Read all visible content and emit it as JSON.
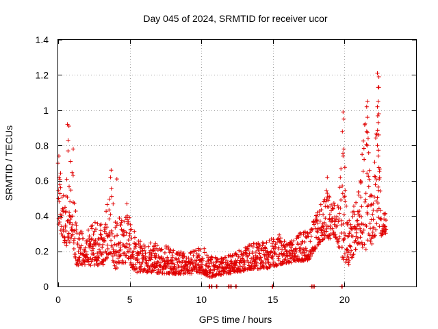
{
  "chart_data": {
    "type": "scatter",
    "title": "Day 045 of 2024, SRMTID for receiver ucor",
    "xlabel": "GPS time / hours",
    "ylabel": "SRMTID / TECUs",
    "xlim": [
      0,
      25
    ],
    "ylim": [
      0,
      1.4
    ],
    "xticks": [
      0,
      5,
      10,
      15,
      20
    ],
    "xtick_labels": [
      "0",
      "5",
      "10",
      "15",
      "20"
    ],
    "yticks": [
      0,
      0.2,
      0.4,
      0.6,
      0.8,
      1.0,
      1.2,
      1.4
    ],
    "ytick_labels": [
      "0",
      "0.2",
      "0.4",
      "0.6",
      "0.8",
      "1",
      "1.2",
      "1.4"
    ],
    "grid": true,
    "marker": "plus",
    "series_color": "#e00000",
    "envelope": [
      {
        "t": 0.0,
        "lo": 0.35,
        "hi": 0.75
      },
      {
        "t": 0.2,
        "lo": 0.3,
        "hi": 0.65
      },
      {
        "t": 0.5,
        "lo": 0.22,
        "hi": 0.45
      },
      {
        "t": 0.7,
        "lo": 0.25,
        "hi": 0.9
      },
      {
        "t": 1.0,
        "lo": 0.25,
        "hi": 0.75
      },
      {
        "t": 1.3,
        "lo": 0.12,
        "hi": 0.35
      },
      {
        "t": 1.8,
        "lo": 0.12,
        "hi": 0.3
      },
      {
        "t": 2.5,
        "lo": 0.12,
        "hi": 0.4
      },
      {
        "t": 3.2,
        "lo": 0.12,
        "hi": 0.35
      },
      {
        "t": 3.6,
        "lo": 0.2,
        "hi": 0.62
      },
      {
        "t": 4.0,
        "lo": 0.1,
        "hi": 0.4
      },
      {
        "t": 4.5,
        "lo": 0.12,
        "hi": 0.42
      },
      {
        "t": 5.0,
        "lo": 0.12,
        "hi": 0.4
      },
      {
        "t": 5.5,
        "lo": 0.08,
        "hi": 0.28
      },
      {
        "t": 6.5,
        "lo": 0.08,
        "hi": 0.25
      },
      {
        "t": 8.0,
        "lo": 0.07,
        "hi": 0.22
      },
      {
        "t": 9.0,
        "lo": 0.07,
        "hi": 0.18
      },
      {
        "t": 10.0,
        "lo": 0.08,
        "hi": 0.24
      },
      {
        "t": 10.6,
        "lo": 0.05,
        "hi": 0.18
      },
      {
        "t": 11.5,
        "lo": 0.07,
        "hi": 0.16
      },
      {
        "t": 12.5,
        "lo": 0.08,
        "hi": 0.2
      },
      {
        "t": 13.5,
        "lo": 0.1,
        "hi": 0.25
      },
      {
        "t": 14.5,
        "lo": 0.1,
        "hi": 0.25
      },
      {
        "t": 15.5,
        "lo": 0.12,
        "hi": 0.3
      },
      {
        "t": 16.5,
        "lo": 0.14,
        "hi": 0.3
      },
      {
        "t": 17.5,
        "lo": 0.15,
        "hi": 0.32
      },
      {
        "t": 18.0,
        "lo": 0.22,
        "hi": 0.4
      },
      {
        "t": 18.7,
        "lo": 0.28,
        "hi": 0.55
      },
      {
        "t": 19.5,
        "lo": 0.25,
        "hi": 0.45
      },
      {
        "t": 19.9,
        "lo": 0.15,
        "hi": 0.9
      },
      {
        "t": 20.3,
        "lo": 0.12,
        "hi": 0.38
      },
      {
        "t": 21.0,
        "lo": 0.25,
        "hi": 0.55
      },
      {
        "t": 21.5,
        "lo": 0.2,
        "hi": 1.0
      },
      {
        "t": 22.0,
        "lo": 0.25,
        "hi": 0.45
      },
      {
        "t": 22.3,
        "lo": 0.35,
        "hi": 1.2
      },
      {
        "t": 22.6,
        "lo": 0.28,
        "hi": 0.42
      },
      {
        "t": 22.9,
        "lo": 0.3,
        "hi": 0.42
      }
    ],
    "spikes": [
      {
        "x": 0.05,
        "y": 0.74
      },
      {
        "x": 0.65,
        "y": 0.92
      },
      {
        "x": 0.75,
        "y": 0.91
      },
      {
        "x": 0.7,
        "y": 0.83
      },
      {
        "x": 1.05,
        "y": 0.78
      },
      {
        "x": 3.7,
        "y": 0.66
      },
      {
        "x": 3.65,
        "y": 0.62
      },
      {
        "x": 4.1,
        "y": 0.61
      },
      {
        "x": 4.8,
        "y": 0.47
      },
      {
        "x": 19.9,
        "y": 0.99
      },
      {
        "x": 19.95,
        "y": 0.95
      },
      {
        "x": 19.85,
        "y": 0.88
      },
      {
        "x": 19.95,
        "y": 0.78
      },
      {
        "x": 19.9,
        "y": 0.74
      },
      {
        "x": 18.8,
        "y": 0.62
      },
      {
        "x": 21.6,
        "y": 1.05
      },
      {
        "x": 21.55,
        "y": 1.02
      },
      {
        "x": 21.6,
        "y": 0.96
      },
      {
        "x": 21.55,
        "y": 0.88
      },
      {
        "x": 21.65,
        "y": 0.84
      },
      {
        "x": 21.6,
        "y": 0.8
      },
      {
        "x": 22.3,
        "y": 1.21
      },
      {
        "x": 22.4,
        "y": 1.19
      },
      {
        "x": 22.35,
        "y": 1.13
      },
      {
        "x": 22.4,
        "y": 1.13
      },
      {
        "x": 22.35,
        "y": 1.05
      },
      {
        "x": 22.3,
        "y": 1.02
      },
      {
        "x": 22.4,
        "y": 0.98
      },
      {
        "x": 22.35,
        "y": 0.93
      },
      {
        "x": 22.4,
        "y": 0.86
      },
      {
        "x": 22.3,
        "y": 0.8
      },
      {
        "x": 22.35,
        "y": 0.74
      },
      {
        "x": 22.45,
        "y": 0.62
      }
    ],
    "zero_marks": [
      10.55,
      10.7,
      11.05,
      11.9,
      12.05,
      12.4,
      14.95,
      17.7,
      17.85,
      19.8
    ]
  }
}
